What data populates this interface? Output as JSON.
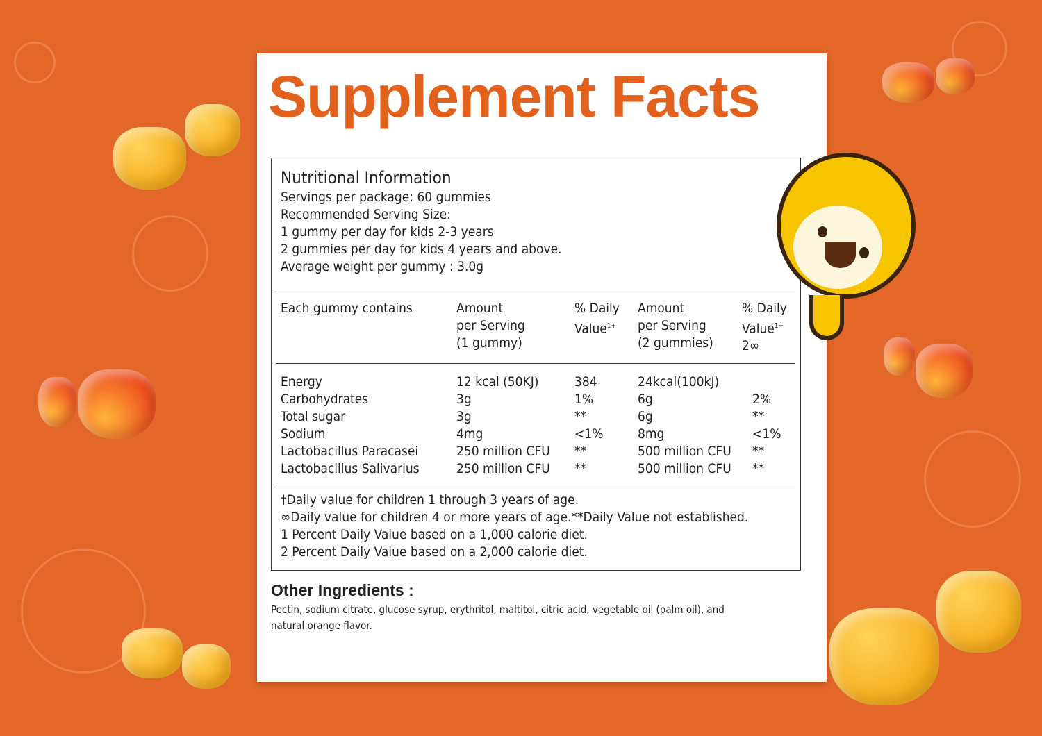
{
  "title": "Supplement Facts",
  "nutritional_info": {
    "heading": "Nutritional Information",
    "lines": [
      "Servings per package: 60 gummies",
      "Recommended Serving Size:",
      "1 gummy per day for kids 2-3 years",
      "2 gummies per day for kids 4 years and above.",
      "Average weight per gummy : 3.0g"
    ]
  },
  "table": {
    "headers": {
      "col1": "Each gummy contains",
      "col2": "Amount\nper Serving\n(1 gummy)",
      "col3": "% Daily\nValue",
      "col3_sup": "1+",
      "col4": "Amount\nper Serving\n(2 gummies)",
      "col5": "% Daily\nValue",
      "col5_sup": "1+",
      "col5_extra": "2∞"
    },
    "rows": [
      [
        "Energy",
        "12 kcal (50KJ)",
        "384",
        "24kcal(100kJ)",
        ""
      ],
      [
        "Carbohydrates",
        "3g",
        "1%",
        "6g",
        "2%"
      ],
      [
        "Total sugar",
        "3g",
        "**",
        "6g",
        "**"
      ],
      [
        "Sodium",
        "4mg",
        "<1%",
        "8mg",
        "<1%"
      ],
      [
        "Lactobacillus Paracasei",
        "250 million CFU",
        "**",
        "500 million CFU",
        "**"
      ],
      [
        "Lactobacillus Salivarius",
        "250 million CFU",
        "**",
        "500 million CFU",
        "**"
      ]
    ]
  },
  "footnotes": [
    "†Daily value for children 1 through 3 years of age.",
    "∞Daily value for children 4 or more years of age.**Daily Value not established.",
    "1 Percent Daily Value based on a 1,000 calorie diet.",
    "2 Percent Daily Value based on a 2,000 calorie diet."
  ],
  "other_ingredients": {
    "heading": "Other Ingredients :",
    "text": "Pectin, sodium citrate, glucose syrup, erythritol, maltitol, citric acid, vegetable oil (palm oil), and natural orange flavor."
  },
  "colors": {
    "background": "#e4672a",
    "title": "#e2621d",
    "mascot": "#f7c400"
  },
  "icons": [
    "gummy-candy",
    "mascot-character"
  ]
}
